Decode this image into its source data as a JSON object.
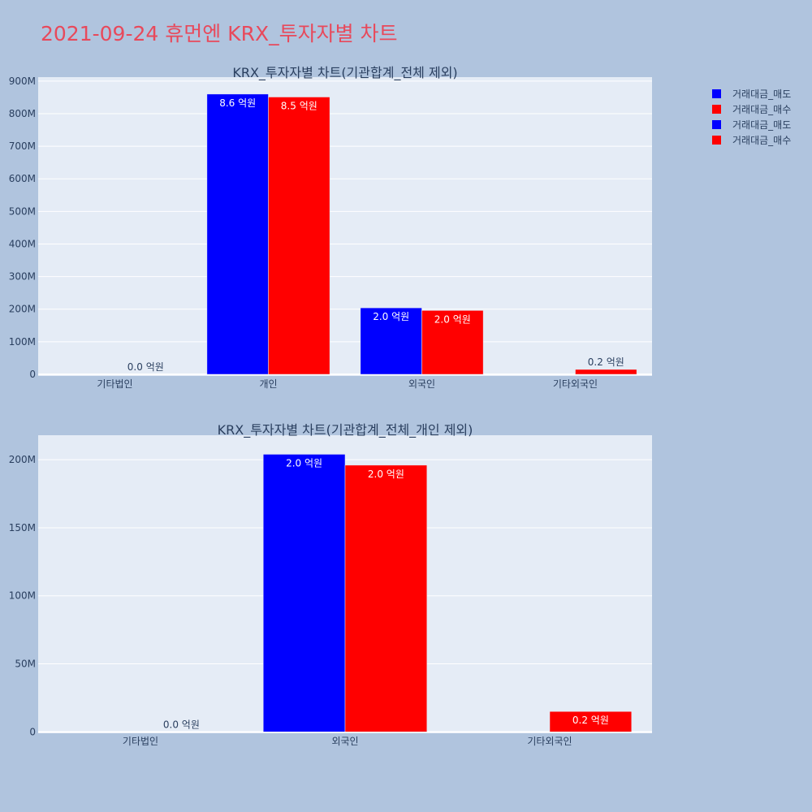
{
  "title": "2021-09-24 휴먼엔 KRX_투자자별 차트",
  "colors": {
    "sell": "#0000ff",
    "buy": "#ff0000"
  },
  "legend": [
    {
      "name": "거래대금_매도",
      "color": "#0000ff"
    },
    {
      "name": "거래대금_매수",
      "color": "#ff0000"
    },
    {
      "name": "거래대금_매도",
      "color": "#0000ff"
    },
    {
      "name": "거래대금_매수",
      "color": "#ff0000"
    }
  ],
  "chart_data": [
    {
      "type": "bar",
      "title": "KRX_투자자별 차트(기관합계_전체 제외)",
      "categories": [
        "기타법인",
        "개인",
        "외국인",
        "기타외국인"
      ],
      "series": [
        {
          "name": "거래대금_매도",
          "values": [
            0,
            860000000,
            204000000,
            0
          ],
          "labels": [
            "",
            "8.6 억원",
            "2.0 억원",
            ""
          ]
        },
        {
          "name": "거래대금_매수",
          "values": [
            0,
            851000000,
            196000000,
            15000000
          ],
          "labels": [
            "0.0 억원",
            "8.5 억원",
            "2.0 억원",
            "0.2 억원"
          ]
        }
      ],
      "yticks": [
        {
          "v": 0,
          "t": "0"
        },
        {
          "v": 100000000,
          "t": "100M"
        },
        {
          "v": 200000000,
          "t": "200M"
        },
        {
          "v": 300000000,
          "t": "300M"
        },
        {
          "v": 400000000,
          "t": "400M"
        },
        {
          "v": 500000000,
          "t": "500M"
        },
        {
          "v": 600000000,
          "t": "600M"
        },
        {
          "v": 700000000,
          "t": "700M"
        },
        {
          "v": 800000000,
          "t": "800M"
        },
        {
          "v": 900000000,
          "t": "900M"
        }
      ],
      "ylim": [
        -5000000,
        912000000
      ],
      "grid": true
    },
    {
      "type": "bar",
      "title": "KRX_투자자별 차트(기관합계_전체_개인 제외)",
      "categories": [
        "기타법인",
        "외국인",
        "기타외국인"
      ],
      "series": [
        {
          "name": "거래대금_매도",
          "values": [
            0,
            204000000,
            0
          ],
          "labels": [
            "",
            "2.0 억원",
            ""
          ]
        },
        {
          "name": "거래대금_매수",
          "values": [
            0,
            196000000,
            15000000
          ],
          "labels": [
            "0.0 억원",
            "2.0 억원",
            "0.2 억원"
          ]
        }
      ],
      "yticks": [
        {
          "v": 0,
          "t": "0"
        },
        {
          "v": 50000000,
          "t": "50M"
        },
        {
          "v": 100000000,
          "t": "100M"
        },
        {
          "v": 150000000,
          "t": "150M"
        },
        {
          "v": 200000000,
          "t": "200M"
        }
      ],
      "ylim": [
        -1000000,
        218000000
      ],
      "grid": true
    }
  ]
}
